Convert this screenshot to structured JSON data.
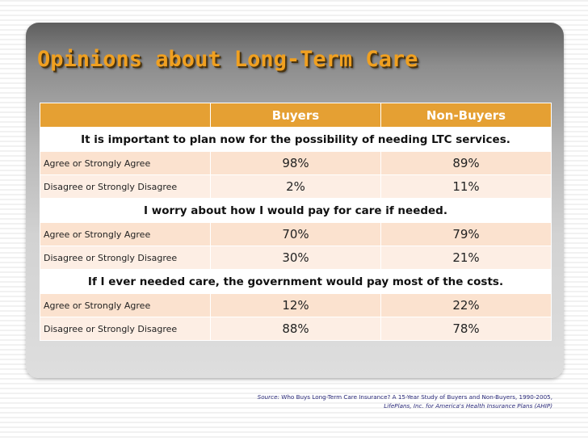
{
  "title": "Opinions about Long-Term Care",
  "table": {
    "headers": [
      "",
      "Buyers",
      "Non-Buyers"
    ],
    "sections": [
      {
        "question": "It is important to plan now for the possibility of needing LTC services.",
        "rows": [
          {
            "label": "Agree or Strongly Agree",
            "buyers": "98%",
            "non_buyers": "89%"
          },
          {
            "label": "Disagree or Strongly Disagree",
            "buyers": "2%",
            "non_buyers": "11%"
          }
        ]
      },
      {
        "question": "I worry about how I would pay for care if needed.",
        "rows": [
          {
            "label": "Agree or Strongly Agree",
            "buyers": "70%",
            "non_buyers": "79%"
          },
          {
            "label": "Disagree or Strongly Disagree",
            "buyers": "30%",
            "non_buyers": "21%"
          }
        ]
      },
      {
        "question": "If I ever needed care, the government would pay most of the costs.",
        "rows": [
          {
            "label": "Agree or Strongly Agree",
            "buyers": "12%",
            "non_buyers": "22%"
          },
          {
            "label": "Disagree or Strongly Disagree",
            "buyers": "88%",
            "non_buyers": "78%"
          }
        ]
      }
    ]
  },
  "source": {
    "label": "Source:",
    "line1": "Who Buys Long-Term Care Insurance?  A 15-Year Study of Buyers and Non-Buyers, 1990-2005,",
    "line2": "LifePlans, Inc. for America's Health Insurance Plans (AHIP)"
  },
  "colors": {
    "title": "#f0a020",
    "header_bg": "#e5a033",
    "row_odd": "#fbe2cf",
    "row_even": "#fdeee4"
  }
}
